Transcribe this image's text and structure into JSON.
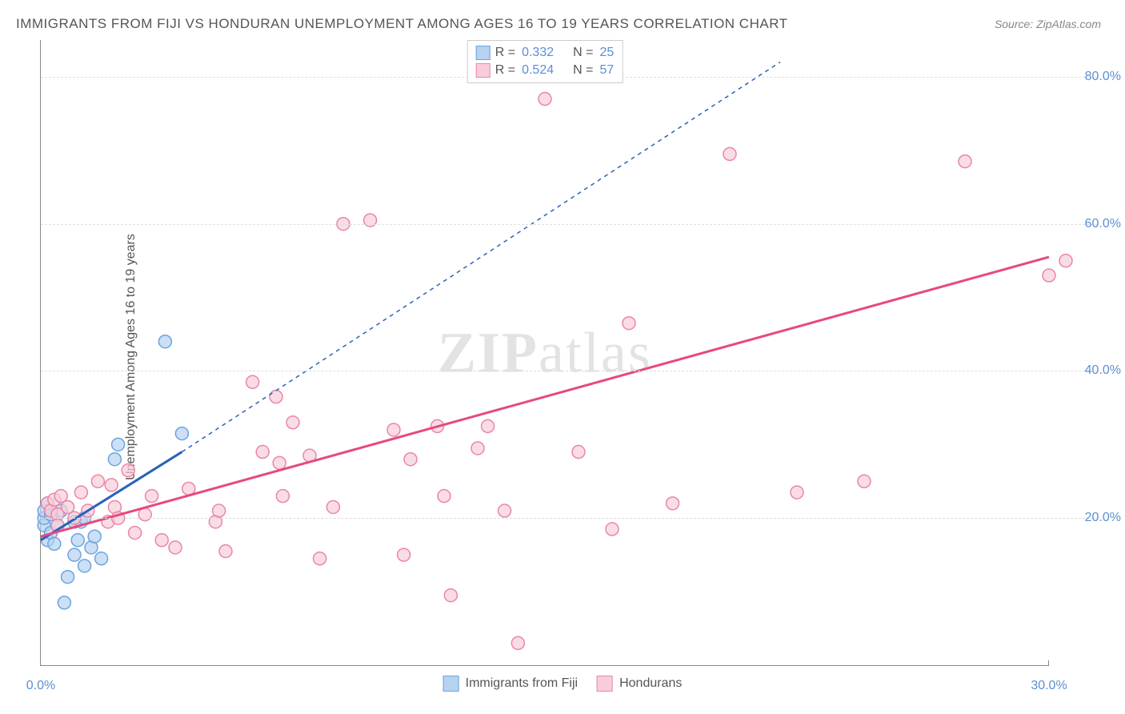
{
  "title": "IMMIGRANTS FROM FIJI VS HONDURAN UNEMPLOYMENT AMONG AGES 16 TO 19 YEARS CORRELATION CHART",
  "source": "Source: ZipAtlas.com",
  "ylabel": "Unemployment Among Ages 16 to 19 years",
  "watermark_a": "ZIP",
  "watermark_b": "atlas",
  "chart": {
    "type": "scatter",
    "xlim": [
      0,
      30
    ],
    "ylim": [
      0,
      85
    ],
    "x_ticks": [
      {
        "v": 0,
        "l": "0.0%"
      },
      {
        "v": 30,
        "l": "30.0%"
      }
    ],
    "y_ticks": [
      {
        "v": 20,
        "l": "20.0%"
      },
      {
        "v": 40,
        "l": "40.0%"
      },
      {
        "v": 60,
        "l": "60.0%"
      },
      {
        "v": 80,
        "l": "80.0%"
      }
    ],
    "background_color": "#ffffff",
    "grid_color": "#dddddd",
    "marker_radius": 8,
    "marker_stroke_width": 1.5,
    "series": [
      {
        "name": "Immigrants from Fiji",
        "color_fill": "#b7d1f0",
        "color_stroke": "#6ba5e0",
        "line_color": "#2a62b8",
        "line_width": 3,
        "line_dash": "",
        "extrap_dash": "5,5",
        "r_value": "0.332",
        "n_value": "25",
        "trend": {
          "x1": 0,
          "y1": 17,
          "x2": 4.2,
          "y2": 29,
          "ex2": 22,
          "ey2": 82
        },
        "points": [
          [
            0.1,
            19
          ],
          [
            0.1,
            20
          ],
          [
            0.1,
            21
          ],
          [
            0.2,
            17
          ],
          [
            0.2,
            22
          ],
          [
            0.3,
            18
          ],
          [
            0.3,
            20.5
          ],
          [
            0.4,
            16.5
          ],
          [
            0.5,
            19
          ],
          [
            0.6,
            21
          ],
          [
            0.7,
            8.5
          ],
          [
            0.8,
            12
          ],
          [
            1.0,
            15
          ],
          [
            1.0,
            19.5
          ],
          [
            1.1,
            17
          ],
          [
            1.2,
            19.5
          ],
          [
            1.3,
            20
          ],
          [
            1.3,
            13.5
          ],
          [
            1.5,
            16
          ],
          [
            1.6,
            17.5
          ],
          [
            1.8,
            14.5
          ],
          [
            2.2,
            28
          ],
          [
            2.3,
            30
          ],
          [
            3.7,
            44
          ],
          [
            4.2,
            31.5
          ]
        ]
      },
      {
        "name": "Hondurans",
        "color_fill": "#f8cdd9",
        "color_stroke": "#e986a9",
        "line_color": "#e64980",
        "line_width": 3,
        "line_dash": "",
        "extrap_dash": "",
        "r_value": "0.524",
        "n_value": "57",
        "trend": {
          "x1": 0,
          "y1": 17.5,
          "x2": 30,
          "y2": 55.5,
          "ex2": 30,
          "ey2": 55.5
        },
        "points": [
          [
            0.2,
            22
          ],
          [
            0.3,
            21
          ],
          [
            0.4,
            22.5
          ],
          [
            0.5,
            20.5
          ],
          [
            0.5,
            19
          ],
          [
            0.6,
            23
          ],
          [
            0.8,
            21.5
          ],
          [
            1.0,
            20
          ],
          [
            1.2,
            23.5
          ],
          [
            1.4,
            21
          ],
          [
            1.7,
            25
          ],
          [
            2.0,
            19.5
          ],
          [
            2.1,
            24.5
          ],
          [
            2.2,
            21.5
          ],
          [
            2.3,
            20
          ],
          [
            2.6,
            26.5
          ],
          [
            2.8,
            18
          ],
          [
            3.1,
            20.5
          ],
          [
            3.3,
            23
          ],
          [
            3.6,
            17
          ],
          [
            4.0,
            16
          ],
          [
            4.4,
            24
          ],
          [
            5.2,
            19.5
          ],
          [
            5.3,
            21
          ],
          [
            5.5,
            15.5
          ],
          [
            6.3,
            38.5
          ],
          [
            6.6,
            29
          ],
          [
            7.0,
            36.5
          ],
          [
            7.1,
            27.5
          ],
          [
            7.2,
            23
          ],
          [
            7.5,
            33
          ],
          [
            8.0,
            28.5
          ],
          [
            8.3,
            14.5
          ],
          [
            8.7,
            21.5
          ],
          [
            9.0,
            60
          ],
          [
            9.8,
            60.5
          ],
          [
            10.5,
            32
          ],
          [
            10.8,
            15
          ],
          [
            11.0,
            28
          ],
          [
            11.8,
            32.5
          ],
          [
            12.0,
            23
          ],
          [
            12.2,
            9.5
          ],
          [
            13.0,
            29.5
          ],
          [
            13.3,
            32.5
          ],
          [
            13.8,
            21
          ],
          [
            14.2,
            3
          ],
          [
            15.0,
            77
          ],
          [
            16.0,
            29
          ],
          [
            17.0,
            18.5
          ],
          [
            17.5,
            46.5
          ],
          [
            18.8,
            22
          ],
          [
            20.5,
            69.5
          ],
          [
            22.5,
            23.5
          ],
          [
            24.5,
            25
          ],
          [
            27.5,
            68.5
          ],
          [
            30.0,
            53
          ],
          [
            30.5,
            55
          ]
        ]
      }
    ]
  },
  "legend_top": {
    "rows": [
      {
        "r_label": "R =",
        "r": "0.332",
        "n_label": "N =",
        "n": "25",
        "fill": "#b7d1f0",
        "stroke": "#6ba5e0"
      },
      {
        "r_label": "R =",
        "r": "0.524",
        "n_label": "N =",
        "n": "57",
        "fill": "#f8cdd9",
        "stroke": "#e986a9"
      }
    ]
  },
  "legend_bottom": {
    "items": [
      {
        "label": "Immigrants from Fiji",
        "fill": "#b7d1f0",
        "stroke": "#6ba5e0"
      },
      {
        "label": "Hondurans",
        "fill": "#f8cdd9",
        "stroke": "#e986a9"
      }
    ]
  }
}
